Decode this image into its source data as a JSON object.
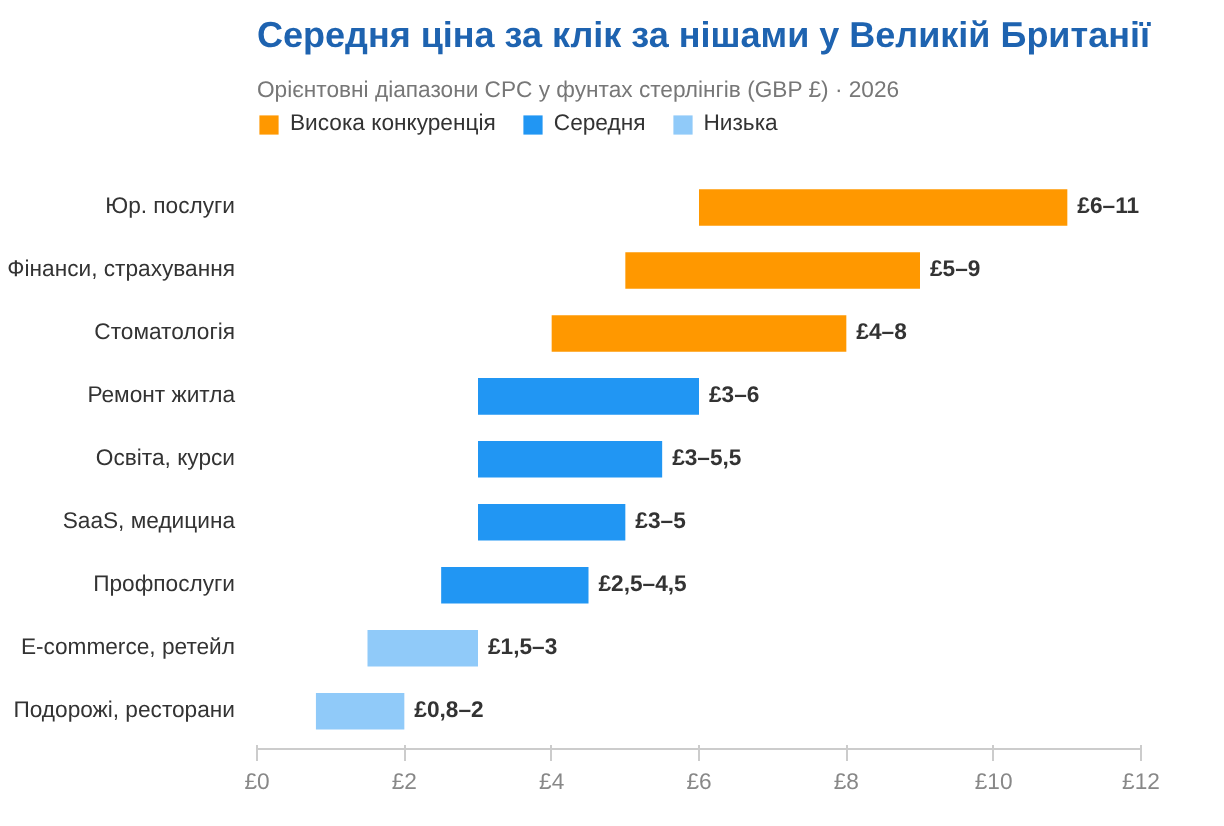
{
  "chart_data": {
    "type": "bar",
    "orientation": "horizontal",
    "title": "Середня ціна за клік за нішами у Великій Британії",
    "subtitle": "Орієнтовні діапазони CPC у фунтах стерлінгів (GBP £) · 2026",
    "categories": [
      "Юр. послуги",
      "Фінанси, страхування",
      "Стоматологія",
      "Ремонт житла",
      "Освіта, курси",
      "SaaS, медицина",
      "Профпослуги",
      "E-commerce, ретейл",
      "Подорожі, ресторани"
    ],
    "series": [
      {
        "name": "Висока конкуренція",
        "color": "#ff9800",
        "base": [
          6,
          5,
          4,
          null,
          null,
          null,
          null,
          null,
          null
        ],
        "values": [
          5,
          4,
          4,
          null,
          null,
          null,
          null,
          null,
          null
        ],
        "value_labels": [
          "£6–11",
          "£5–9",
          "£4–8",
          null,
          null,
          null,
          null,
          null,
          null
        ]
      },
      {
        "name": "Середня",
        "color": "#2196f3",
        "base": [
          null,
          null,
          null,
          3,
          3,
          3,
          2.5,
          null,
          null
        ],
        "values": [
          null,
          null,
          null,
          3,
          2.5,
          2,
          2,
          null,
          null
        ],
        "value_labels": [
          null,
          null,
          null,
          "£3–6",
          "£3–5,5",
          "£3–5",
          "£2,5–4,5",
          null,
          null
        ]
      },
      {
        "name": "Низька",
        "color": "#90caf9",
        "base": [
          null,
          null,
          null,
          null,
          null,
          null,
          null,
          1.5,
          0.8
        ],
        "values": [
          null,
          null,
          null,
          null,
          null,
          null,
          null,
          1.5,
          1.2
        ],
        "value_labels": [
          null,
          null,
          null,
          null,
          null,
          null,
          null,
          "£1,5–3",
          "£0,8–2"
        ]
      }
    ],
    "xlim": [
      0,
      12
    ],
    "xticks": [
      {
        "value": 0,
        "label": "£0"
      },
      {
        "value": 2,
        "label": "£2"
      },
      {
        "value": 4,
        "label": "£4"
      },
      {
        "value": 6,
        "label": "£6"
      },
      {
        "value": 8,
        "label": "£8"
      },
      {
        "value": 10,
        "label": "£10"
      },
      {
        "value": 12,
        "label": "£12"
      }
    ],
    "grid": false,
    "legend": "top left"
  }
}
